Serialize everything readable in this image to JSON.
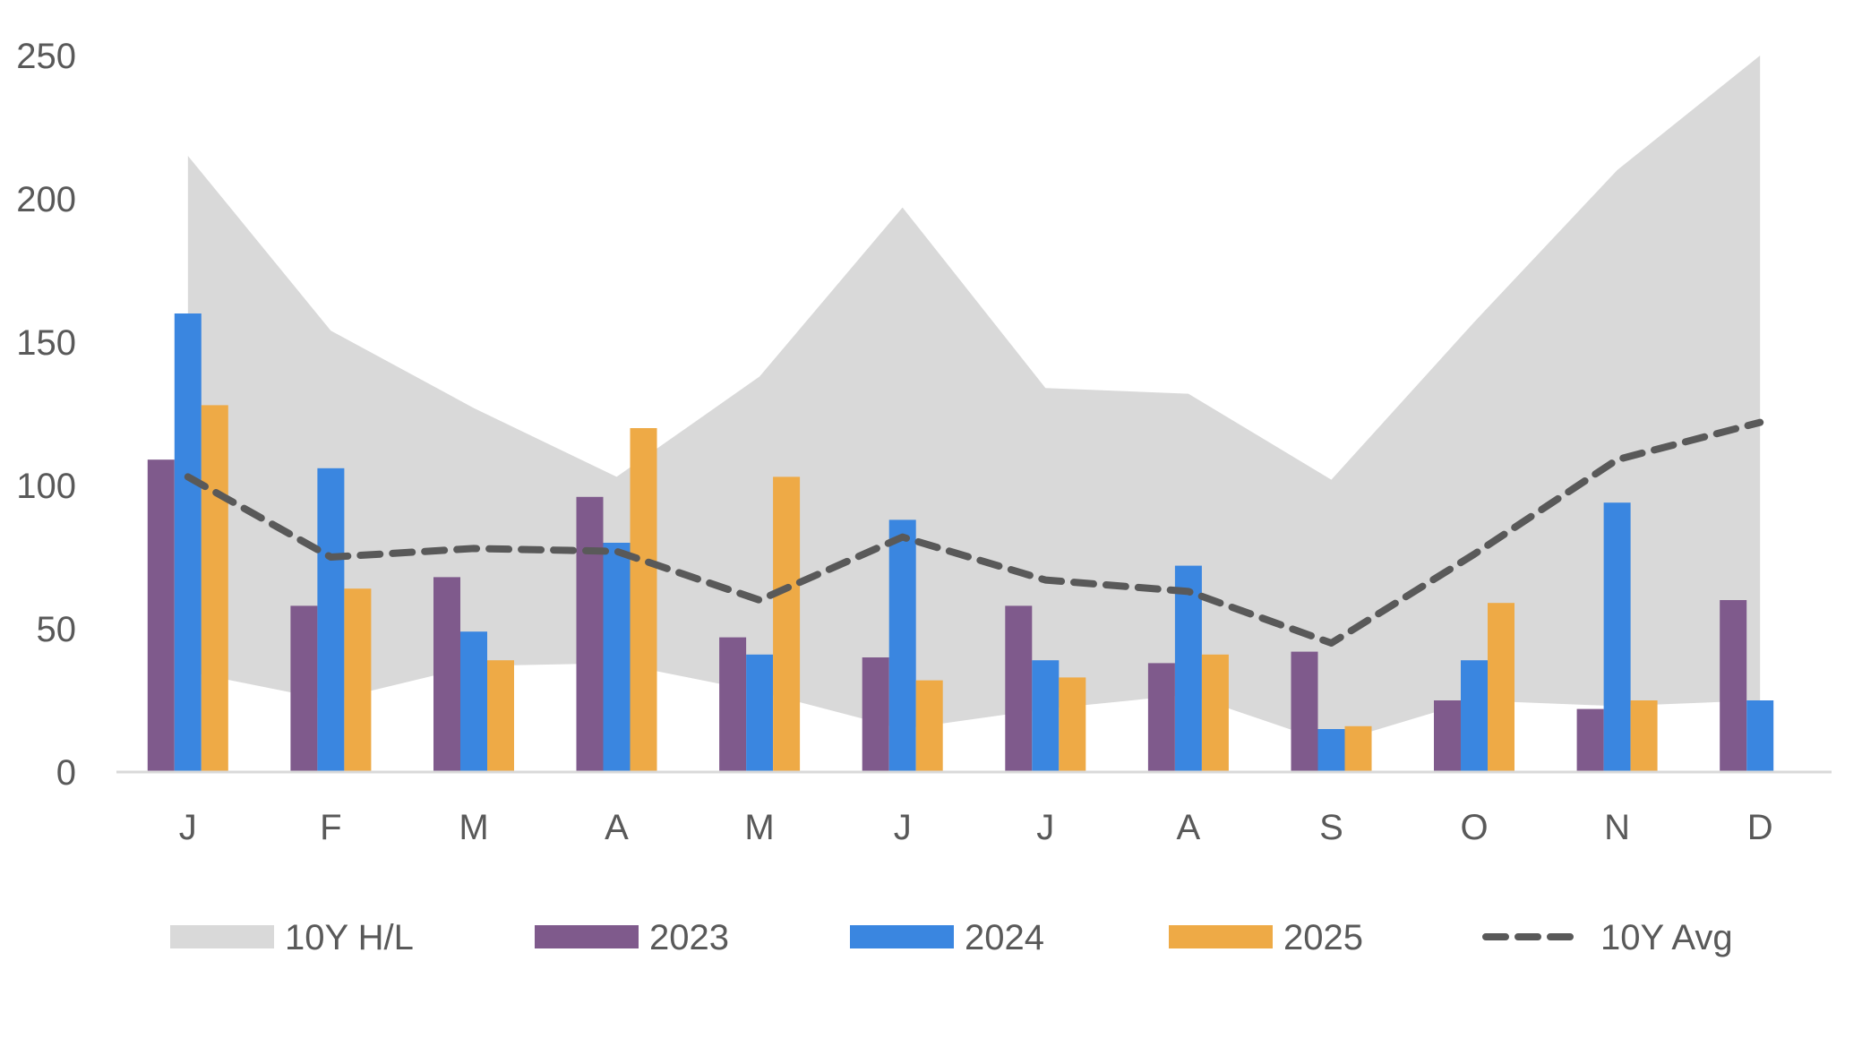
{
  "chart_data": {
    "type": "bar",
    "categories": [
      "J",
      "F",
      "M",
      "A",
      "M",
      "J",
      "J",
      "A",
      "S",
      "O",
      "N",
      "D"
    ],
    "ylim": [
      0,
      250
    ],
    "yticks": [
      "0",
      "50",
      "100",
      "150",
      "200",
      "250"
    ],
    "band": {
      "name": "10Y H/L",
      "color": "#d9d9d9",
      "high": [
        215,
        154,
        127,
        103,
        138,
        197,
        134,
        132,
        102,
        157,
        210,
        250
      ],
      "low": [
        35,
        25,
        37,
        38,
        28,
        15,
        22,
        27,
        10,
        25,
        23,
        25
      ]
    },
    "series": [
      {
        "name": "2023",
        "color": "#7f5a8c",
        "values": [
          109,
          58,
          68,
          96,
          47,
          40,
          58,
          38,
          42,
          25,
          22,
          60
        ]
      },
      {
        "name": "2024",
        "color": "#3a86e0",
        "values": [
          160,
          106,
          49,
          80,
          41,
          88,
          39,
          72,
          15,
          39,
          94,
          25
        ]
      },
      {
        "name": "2025",
        "color": "#eeaa46",
        "values": [
          128,
          64,
          39,
          120,
          103,
          32,
          33,
          41,
          16,
          59,
          25,
          null
        ]
      }
    ],
    "line": {
      "name": "10Y Avg",
      "color": "#595959",
      "values": [
        103,
        75,
        78,
        77,
        60,
        82,
        67,
        63,
        45,
        76,
        109,
        122
      ]
    },
    "legend": [
      "10Y H/L",
      "2023",
      "2024",
      "2025",
      "10Y Avg"
    ],
    "legend_position": "bottom",
    "grid": false
  }
}
